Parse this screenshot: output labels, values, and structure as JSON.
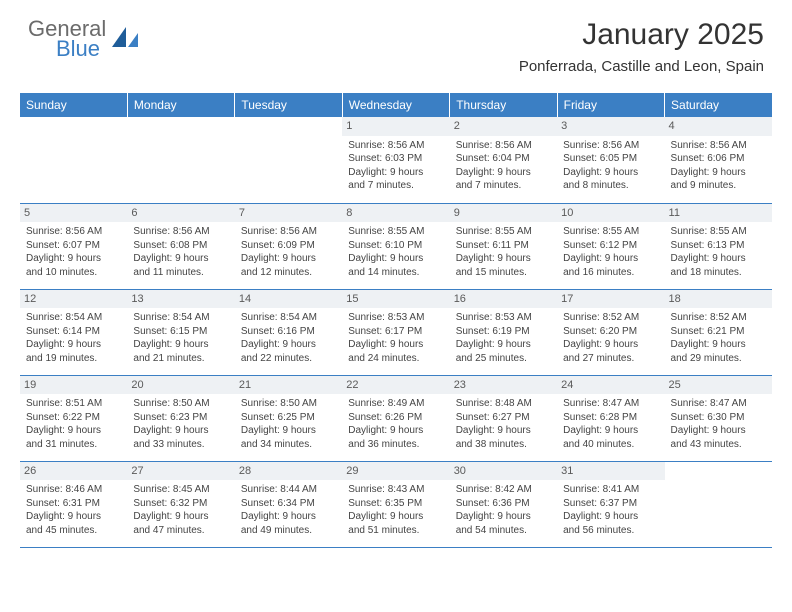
{
  "brand": {
    "top": "General",
    "bottom": "Blue"
  },
  "title": "January 2025",
  "location": "Ponferrada, Castille and Leon, Spain",
  "dayHeaders": [
    "Sunday",
    "Monday",
    "Tuesday",
    "Wednesday",
    "Thursday",
    "Friday",
    "Saturday"
  ],
  "colors": {
    "accent": "#3b7fc4",
    "daynum_bg": "#eef1f4",
    "text": "#333333",
    "brand_gray": "#6b6b6b"
  },
  "weeks": [
    [
      {
        "n": "",
        "empty": true,
        "lines": [
          "",
          "",
          "",
          ""
        ]
      },
      {
        "n": "",
        "empty": true,
        "lines": [
          "",
          "",
          "",
          ""
        ]
      },
      {
        "n": "",
        "empty": true,
        "lines": [
          "",
          "",
          "",
          ""
        ]
      },
      {
        "n": "1",
        "lines": [
          "Sunrise: 8:56 AM",
          "Sunset: 6:03 PM",
          "Daylight: 9 hours",
          "and 7 minutes."
        ]
      },
      {
        "n": "2",
        "lines": [
          "Sunrise: 8:56 AM",
          "Sunset: 6:04 PM",
          "Daylight: 9 hours",
          "and 7 minutes."
        ]
      },
      {
        "n": "3",
        "lines": [
          "Sunrise: 8:56 AM",
          "Sunset: 6:05 PM",
          "Daylight: 9 hours",
          "and 8 minutes."
        ]
      },
      {
        "n": "4",
        "lines": [
          "Sunrise: 8:56 AM",
          "Sunset: 6:06 PM",
          "Daylight: 9 hours",
          "and 9 minutes."
        ]
      }
    ],
    [
      {
        "n": "5",
        "lines": [
          "Sunrise: 8:56 AM",
          "Sunset: 6:07 PM",
          "Daylight: 9 hours",
          "and 10 minutes."
        ]
      },
      {
        "n": "6",
        "lines": [
          "Sunrise: 8:56 AM",
          "Sunset: 6:08 PM",
          "Daylight: 9 hours",
          "and 11 minutes."
        ]
      },
      {
        "n": "7",
        "lines": [
          "Sunrise: 8:56 AM",
          "Sunset: 6:09 PM",
          "Daylight: 9 hours",
          "and 12 minutes."
        ]
      },
      {
        "n": "8",
        "lines": [
          "Sunrise: 8:55 AM",
          "Sunset: 6:10 PM",
          "Daylight: 9 hours",
          "and 14 minutes."
        ]
      },
      {
        "n": "9",
        "lines": [
          "Sunrise: 8:55 AM",
          "Sunset: 6:11 PM",
          "Daylight: 9 hours",
          "and 15 minutes."
        ]
      },
      {
        "n": "10",
        "lines": [
          "Sunrise: 8:55 AM",
          "Sunset: 6:12 PM",
          "Daylight: 9 hours",
          "and 16 minutes."
        ]
      },
      {
        "n": "11",
        "lines": [
          "Sunrise: 8:55 AM",
          "Sunset: 6:13 PM",
          "Daylight: 9 hours",
          "and 18 minutes."
        ]
      }
    ],
    [
      {
        "n": "12",
        "lines": [
          "Sunrise: 8:54 AM",
          "Sunset: 6:14 PM",
          "Daylight: 9 hours",
          "and 19 minutes."
        ]
      },
      {
        "n": "13",
        "lines": [
          "Sunrise: 8:54 AM",
          "Sunset: 6:15 PM",
          "Daylight: 9 hours",
          "and 21 minutes."
        ]
      },
      {
        "n": "14",
        "lines": [
          "Sunrise: 8:54 AM",
          "Sunset: 6:16 PM",
          "Daylight: 9 hours",
          "and 22 minutes."
        ]
      },
      {
        "n": "15",
        "lines": [
          "Sunrise: 8:53 AM",
          "Sunset: 6:17 PM",
          "Daylight: 9 hours",
          "and 24 minutes."
        ]
      },
      {
        "n": "16",
        "lines": [
          "Sunrise: 8:53 AM",
          "Sunset: 6:19 PM",
          "Daylight: 9 hours",
          "and 25 minutes."
        ]
      },
      {
        "n": "17",
        "lines": [
          "Sunrise: 8:52 AM",
          "Sunset: 6:20 PM",
          "Daylight: 9 hours",
          "and 27 minutes."
        ]
      },
      {
        "n": "18",
        "lines": [
          "Sunrise: 8:52 AM",
          "Sunset: 6:21 PM",
          "Daylight: 9 hours",
          "and 29 minutes."
        ]
      }
    ],
    [
      {
        "n": "19",
        "lines": [
          "Sunrise: 8:51 AM",
          "Sunset: 6:22 PM",
          "Daylight: 9 hours",
          "and 31 minutes."
        ]
      },
      {
        "n": "20",
        "lines": [
          "Sunrise: 8:50 AM",
          "Sunset: 6:23 PM",
          "Daylight: 9 hours",
          "and 33 minutes."
        ]
      },
      {
        "n": "21",
        "lines": [
          "Sunrise: 8:50 AM",
          "Sunset: 6:25 PM",
          "Daylight: 9 hours",
          "and 34 minutes."
        ]
      },
      {
        "n": "22",
        "lines": [
          "Sunrise: 8:49 AM",
          "Sunset: 6:26 PM",
          "Daylight: 9 hours",
          "and 36 minutes."
        ]
      },
      {
        "n": "23",
        "lines": [
          "Sunrise: 8:48 AM",
          "Sunset: 6:27 PM",
          "Daylight: 9 hours",
          "and 38 minutes."
        ]
      },
      {
        "n": "24",
        "lines": [
          "Sunrise: 8:47 AM",
          "Sunset: 6:28 PM",
          "Daylight: 9 hours",
          "and 40 minutes."
        ]
      },
      {
        "n": "25",
        "lines": [
          "Sunrise: 8:47 AM",
          "Sunset: 6:30 PM",
          "Daylight: 9 hours",
          "and 43 minutes."
        ]
      }
    ],
    [
      {
        "n": "26",
        "lines": [
          "Sunrise: 8:46 AM",
          "Sunset: 6:31 PM",
          "Daylight: 9 hours",
          "and 45 minutes."
        ]
      },
      {
        "n": "27",
        "lines": [
          "Sunrise: 8:45 AM",
          "Sunset: 6:32 PM",
          "Daylight: 9 hours",
          "and 47 minutes."
        ]
      },
      {
        "n": "28",
        "lines": [
          "Sunrise: 8:44 AM",
          "Sunset: 6:34 PM",
          "Daylight: 9 hours",
          "and 49 minutes."
        ]
      },
      {
        "n": "29",
        "lines": [
          "Sunrise: 8:43 AM",
          "Sunset: 6:35 PM",
          "Daylight: 9 hours",
          "and 51 minutes."
        ]
      },
      {
        "n": "30",
        "lines": [
          "Sunrise: 8:42 AM",
          "Sunset: 6:36 PM",
          "Daylight: 9 hours",
          "and 54 minutes."
        ]
      },
      {
        "n": "31",
        "lines": [
          "Sunrise: 8:41 AM",
          "Sunset: 6:37 PM",
          "Daylight: 9 hours",
          "and 56 minutes."
        ]
      },
      {
        "n": "",
        "empty": true,
        "lines": [
          "",
          "",
          "",
          ""
        ]
      }
    ]
  ]
}
